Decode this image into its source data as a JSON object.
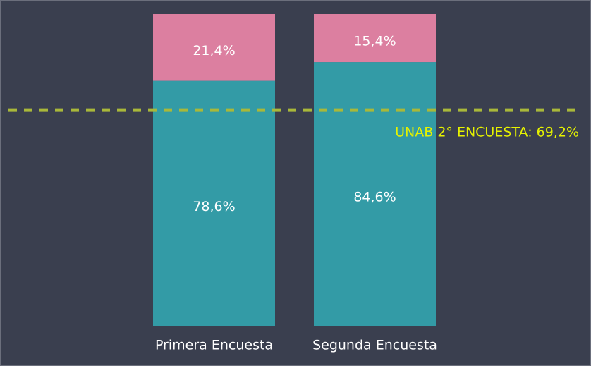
{
  "chart_data": {
    "type": "stacked-bar",
    "categories": [
      "Primera Encuesta",
      "Segunda Encuesta"
    ],
    "series": [
      {
        "color": "#339ba6",
        "values": [
          78.6,
          84.6
        ],
        "value_labels": [
          "78,6%",
          "84,6%"
        ]
      },
      {
        "color": "#dc7fa0",
        "values": [
          21.4,
          15.4
        ],
        "value_labels": [
          "21,4%",
          "15,4%"
        ]
      }
    ],
    "ylim": [
      0,
      100
    ],
    "reference_line": {
      "value": 69.2,
      "label": "UNAB 2° ENCUESTA: 69,2%",
      "color": "#a9b83a",
      "label_color": "#e6f200"
    }
  }
}
